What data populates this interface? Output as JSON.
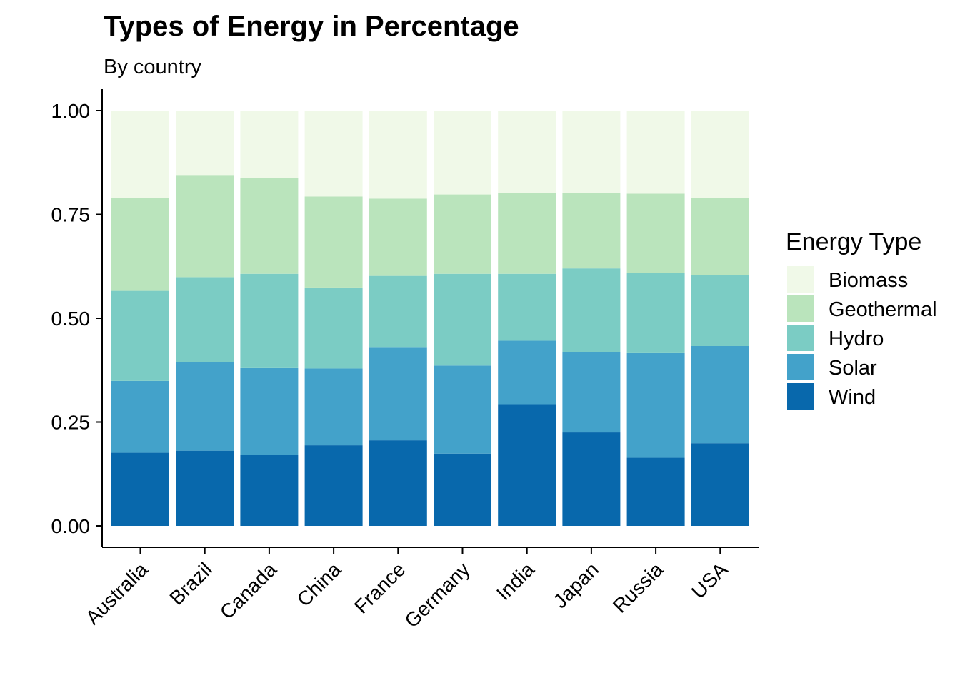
{
  "chart_data": {
    "type": "bar",
    "stacked": true,
    "title": "Types of Energy in Percentage",
    "subtitle": "By country",
    "xlabel": "",
    "ylabel": "",
    "ylim": [
      0,
      1
    ],
    "y_ticks": [
      "0.00",
      "0.25",
      "0.50",
      "0.75",
      "1.00"
    ],
    "grid": false,
    "legend_title": "Energy Type",
    "legend_position": "right",
    "categories": [
      "Australia",
      "Brazil",
      "Canada",
      "China",
      "France",
      "Germany",
      "India",
      "Japan",
      "Russia",
      "USA"
    ],
    "series": [
      {
        "name": "Wind",
        "color": "#0868ac",
        "values": [
          0.176,
          0.181,
          0.171,
          0.194,
          0.206,
          0.174,
          0.293,
          0.225,
          0.164,
          0.199
        ]
      },
      {
        "name": "Solar",
        "color": "#43a2ca",
        "values": [
          0.173,
          0.213,
          0.209,
          0.185,
          0.223,
          0.212,
          0.153,
          0.193,
          0.252,
          0.234
        ]
      },
      {
        "name": "Hydro",
        "color": "#7bccc4",
        "values": [
          0.217,
          0.205,
          0.227,
          0.195,
          0.173,
          0.221,
          0.161,
          0.202,
          0.193,
          0.171
        ]
      },
      {
        "name": "Geothermal",
        "color": "#bae4bc",
        "values": [
          0.223,
          0.246,
          0.231,
          0.219,
          0.186,
          0.191,
          0.194,
          0.181,
          0.191,
          0.186
        ]
      },
      {
        "name": "Biomass",
        "color": "#f0f9e8",
        "values": [
          0.211,
          0.155,
          0.162,
          0.207,
          0.212,
          0.202,
          0.199,
          0.199,
          0.2,
          0.21
        ]
      }
    ]
  }
}
